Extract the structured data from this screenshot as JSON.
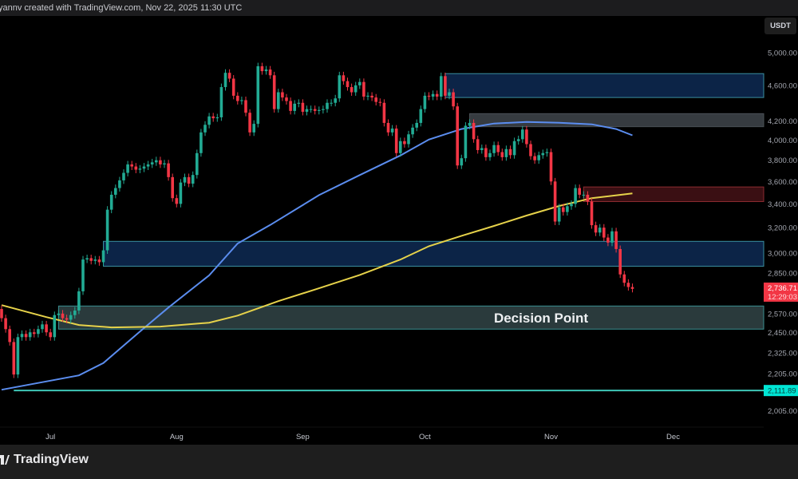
{
  "header": {
    "attribution": "yannv created with TradingView.com, Nov 22, 2025 11:30 UTC"
  },
  "footer": {
    "logo_text": "TradingView"
  },
  "price_axis": {
    "currency": "USDT"
  },
  "colors": {
    "up": "#22ab94",
    "down": "#f23645",
    "ma_blue": "#5b8def",
    "ma_yellow": "#e6d24a",
    "cyan": "#00e5d4",
    "background": "#000000"
  },
  "chart_data": {
    "type": "candlestick",
    "y_scale": "log",
    "ylim": [
      1960,
      5150
    ],
    "grid": false,
    "y_ticks": [
      "5,000.00",
      "4,600.00",
      "4,200.00",
      "4,000.00",
      "3,800.00",
      "3,600.00",
      "3,400.00",
      "3,200.00",
      "3,000.00",
      "2,850.00",
      "2,570.00",
      "2,450.00",
      "2,325.00",
      "2,205.00",
      "2,005.00"
    ],
    "y_tick_values": [
      5000,
      4600,
      4200,
      4000,
      3800,
      3600,
      3400,
      3200,
      3000,
      2850,
      2570,
      2450,
      2325,
      2205,
      2005
    ],
    "x_ticks": [
      {
        "label": "Jul",
        "date": "2025-07-01"
      },
      {
        "label": "Aug",
        "date": "2025-08-01"
      },
      {
        "label": "Sep",
        "date": "2025-09-01"
      },
      {
        "label": "Oct",
        "date": "2025-10-01"
      },
      {
        "label": "Nov",
        "date": "2025-11-01"
      },
      {
        "label": "Dec",
        "date": "2025-12-01"
      }
    ],
    "first_open": 2600,
    "candles_by_month": [
      {
        "month": "2025-06",
        "first_day": 19,
        "closes": [
          2540,
          2470,
          2390,
          2200,
          2420,
          2440,
          2420,
          2450,
          2440,
          2470,
          2500,
          2450
        ]
      },
      {
        "month": "2025-07",
        "first_day": 1,
        "closes": [
          2420,
          2560,
          2570,
          2540,
          2530,
          2560,
          2590,
          2720,
          2950,
          2960,
          2940,
          2950,
          2930,
          3020,
          3350,
          3480,
          3540,
          3610,
          3680,
          3760,
          3740,
          3710,
          3720,
          3740,
          3760,
          3780,
          3800,
          3760,
          3770,
          3640,
          3450
        ]
      },
      {
        "month": "2025-08",
        "first_day": 1,
        "closes": [
          3400,
          3590,
          3640,
          3580,
          3660,
          3870,
          4080,
          4160,
          4250,
          4230,
          4240,
          4580,
          4750,
          4680,
          4480,
          4420,
          4430,
          4290,
          4080,
          4170,
          4830,
          4770,
          4790,
          4720,
          4330,
          4520,
          4460,
          4420,
          4310,
          4390,
          4400
        ]
      },
      {
        "month": "2025-09",
        "first_day": 1,
        "closes": [
          4300,
          4330,
          4330,
          4310,
          4320,
          4330,
          4400,
          4400,
          4450,
          4720,
          4650,
          4580,
          4520,
          4600,
          4640,
          4470,
          4480,
          4460,
          4410,
          4400,
          4180,
          4080,
          4120,
          3870,
          3990,
          3960,
          4060,
          4130,
          4180,
          4330
        ]
      },
      {
        "month": "2025-10",
        "first_day": 1,
        "closes": [
          4480,
          4470,
          4500,
          4470,
          4710,
          4480,
          4520,
          4360,
          3750,
          3820,
          4150,
          4180,
          4010,
          3900,
          3920,
          3830,
          3870,
          3950,
          3880,
          3830,
          3910,
          3850,
          3990,
          4010,
          4110,
          3960,
          3840,
          3800,
          3850,
          3870,
          3880
        ]
      },
      {
        "month": "2025-11",
        "first_day": 1,
        "closes": [
          3600,
          3250,
          3370,
          3330,
          3380,
          3400,
          3540,
          3480,
          3480,
          3420,
          3220,
          3160,
          3200,
          3120,
          3080,
          3170,
          3030,
          2840,
          2780,
          2750,
          2737
        ]
      }
    ],
    "moving_averages": [
      {
        "color_key": "ma_blue",
        "points": [
          [
            "2025-06-19",
            2116
          ],
          [
            "2025-07-08",
            2195
          ],
          [
            "2025-07-14",
            2265
          ],
          [
            "2025-07-23",
            2455
          ],
          [
            "2025-07-30",
            2610
          ],
          [
            "2025-08-09",
            2833
          ],
          [
            "2025-08-16",
            3073
          ],
          [
            "2025-08-24",
            3222
          ],
          [
            "2025-09-05",
            3477
          ],
          [
            "2025-09-15",
            3659
          ],
          [
            "2025-09-25",
            3847
          ],
          [
            "2025-10-02",
            4006
          ],
          [
            "2025-10-10",
            4115
          ],
          [
            "2025-10-18",
            4174
          ],
          [
            "2025-10-26",
            4190
          ],
          [
            "2025-11-03",
            4182
          ],
          [
            "2025-11-11",
            4165
          ],
          [
            "2025-11-17",
            4115
          ],
          [
            "2025-11-21",
            4050
          ]
        ]
      },
      {
        "color_key": "ma_yellow",
        "points": [
          [
            "2025-06-19",
            2626
          ],
          [
            "2025-06-30",
            2547
          ],
          [
            "2025-07-08",
            2496
          ],
          [
            "2025-07-16",
            2481
          ],
          [
            "2025-07-28",
            2486
          ],
          [
            "2025-08-09",
            2511
          ],
          [
            "2025-08-16",
            2557
          ],
          [
            "2025-08-26",
            2653
          ],
          [
            "2025-09-05",
            2741
          ],
          [
            "2025-09-15",
            2836
          ],
          [
            "2025-09-25",
            2950
          ],
          [
            "2025-10-02",
            3052
          ],
          [
            "2025-10-10",
            3134
          ],
          [
            "2025-10-18",
            3214
          ],
          [
            "2025-10-26",
            3300
          ],
          [
            "2025-11-03",
            3382
          ],
          [
            "2025-11-11",
            3450
          ],
          [
            "2025-11-21",
            3492
          ]
        ]
      }
    ],
    "zones": [
      {
        "kind": "supply-blue",
        "from": "2025-10-06",
        "top": 4740,
        "bottom": 4460,
        "fill": "#0c2447",
        "stroke": "#3a8fa0"
      },
      {
        "kind": "gray",
        "from": "2025-10-12",
        "top": 4280,
        "bottom": 4140,
        "fill": "#363b40",
        "stroke": "#4a5055"
      },
      {
        "kind": "red",
        "from": "2025-11-09",
        "top": 3550,
        "bottom": 3420,
        "fill": "#3a0f13",
        "stroke": "#8c2b30"
      },
      {
        "kind": "mid-blue",
        "from": "2025-07-14",
        "top": 3090,
        "bottom": 2900,
        "fill": "#0c2447",
        "stroke": "#3a8fa0"
      },
      {
        "kind": "decision",
        "from": "2025-07-03",
        "top": 2620,
        "bottom": 2470,
        "fill": "#2a3a3c",
        "stroke": "#3a8f90",
        "label": "Decision Point"
      }
    ],
    "horizontal_line": {
      "from": "2025-06-22",
      "value": 2111.89,
      "label": "2,111.89"
    },
    "last_price": {
      "value": 2736.71,
      "label": "2,736.71",
      "countdown": "12:29:03"
    }
  }
}
